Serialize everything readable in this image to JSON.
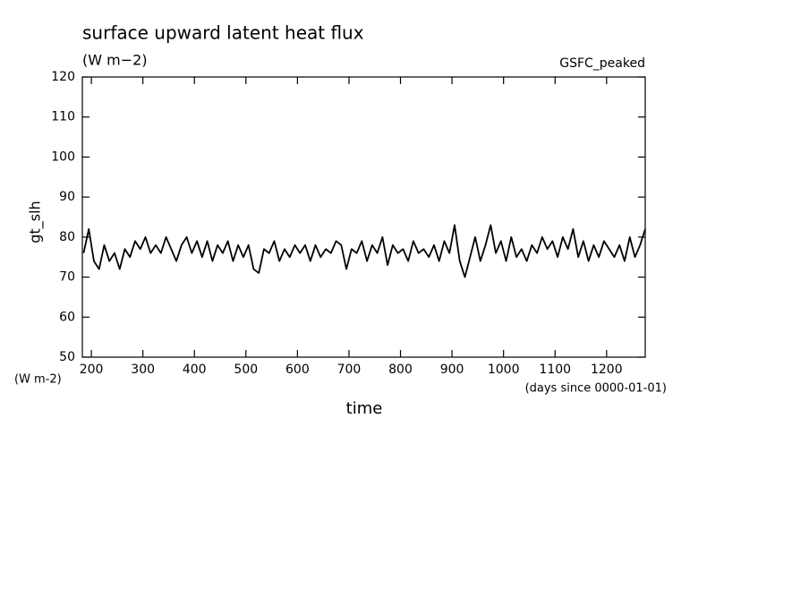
{
  "chart_data": {
    "type": "line",
    "title": "surface upward latent heat flux",
    "subtitle": "(W m−2)",
    "annotation": "GSFC_peaked",
    "ylabel": "gt_slh",
    "yunit": "(W m-2)",
    "xunit": "(days since 0000-01-01)",
    "xlabel": "time",
    "xlim": [
      182.5,
      1275
    ],
    "ylim": [
      50,
      120
    ],
    "xticks": [
      200,
      300,
      400,
      500,
      600,
      700,
      800,
      900,
      1000,
      1100,
      1200
    ],
    "yticks": [
      50,
      60,
      70,
      80,
      90,
      100,
      110,
      120
    ],
    "series": [
      {
        "color": "#000000",
        "x": [
          185,
          195,
          205,
          215,
          225,
          235,
          245,
          255,
          265,
          275,
          285,
          295,
          305,
          315,
          325,
          335,
          345,
          355,
          365,
          375,
          385,
          395,
          405,
          415,
          425,
          435,
          445,
          455,
          465,
          475,
          485,
          495,
          505,
          515,
          525,
          535,
          545,
          555,
          565,
          575,
          585,
          595,
          605,
          615,
          625,
          635,
          645,
          655,
          665,
          675,
          685,
          695,
          705,
          715,
          725,
          735,
          745,
          755,
          765,
          775,
          785,
          795,
          805,
          815,
          825,
          835,
          845,
          855,
          865,
          875,
          885,
          895,
          905,
          915,
          925,
          935,
          945,
          955,
          965,
          975,
          985,
          995,
          1005,
          1015,
          1025,
          1035,
          1045,
          1055,
          1065,
          1075,
          1085,
          1095,
          1105,
          1115,
          1125,
          1135,
          1145,
          1155,
          1165,
          1175,
          1185,
          1195,
          1205,
          1215,
          1225,
          1235,
          1245,
          1255,
          1265,
          1275
        ],
        "values": [
          76,
          82,
          74,
          72,
          78,
          74,
          76,
          72,
          77,
          75,
          79,
          77,
          80,
          76,
          78,
          76,
          80,
          77,
          74,
          78,
          80,
          76,
          79,
          75,
          79,
          74,
          78,
          76,
          79,
          74,
          78,
          75,
          78,
          72,
          71,
          77,
          76,
          79,
          74,
          77,
          75,
          78,
          76,
          78,
          74,
          78,
          75,
          77,
          76,
          79,
          78,
          72,
          77,
          76,
          79,
          74,
          78,
          76,
          80,
          73,
          78,
          76,
          77,
          74,
          79,
          76,
          77,
          75,
          78,
          74,
          79,
          76,
          83,
          74,
          70,
          75,
          80,
          74,
          78,
          83,
          76,
          79,
          74,
          80,
          75,
          77,
          74,
          78,
          76,
          80,
          77,
          79,
          75,
          80,
          77,
          82,
          75,
          79,
          74,
          78,
          75,
          79,
          77,
          75,
          78,
          74,
          80,
          75,
          78,
          82
        ]
      }
    ]
  }
}
